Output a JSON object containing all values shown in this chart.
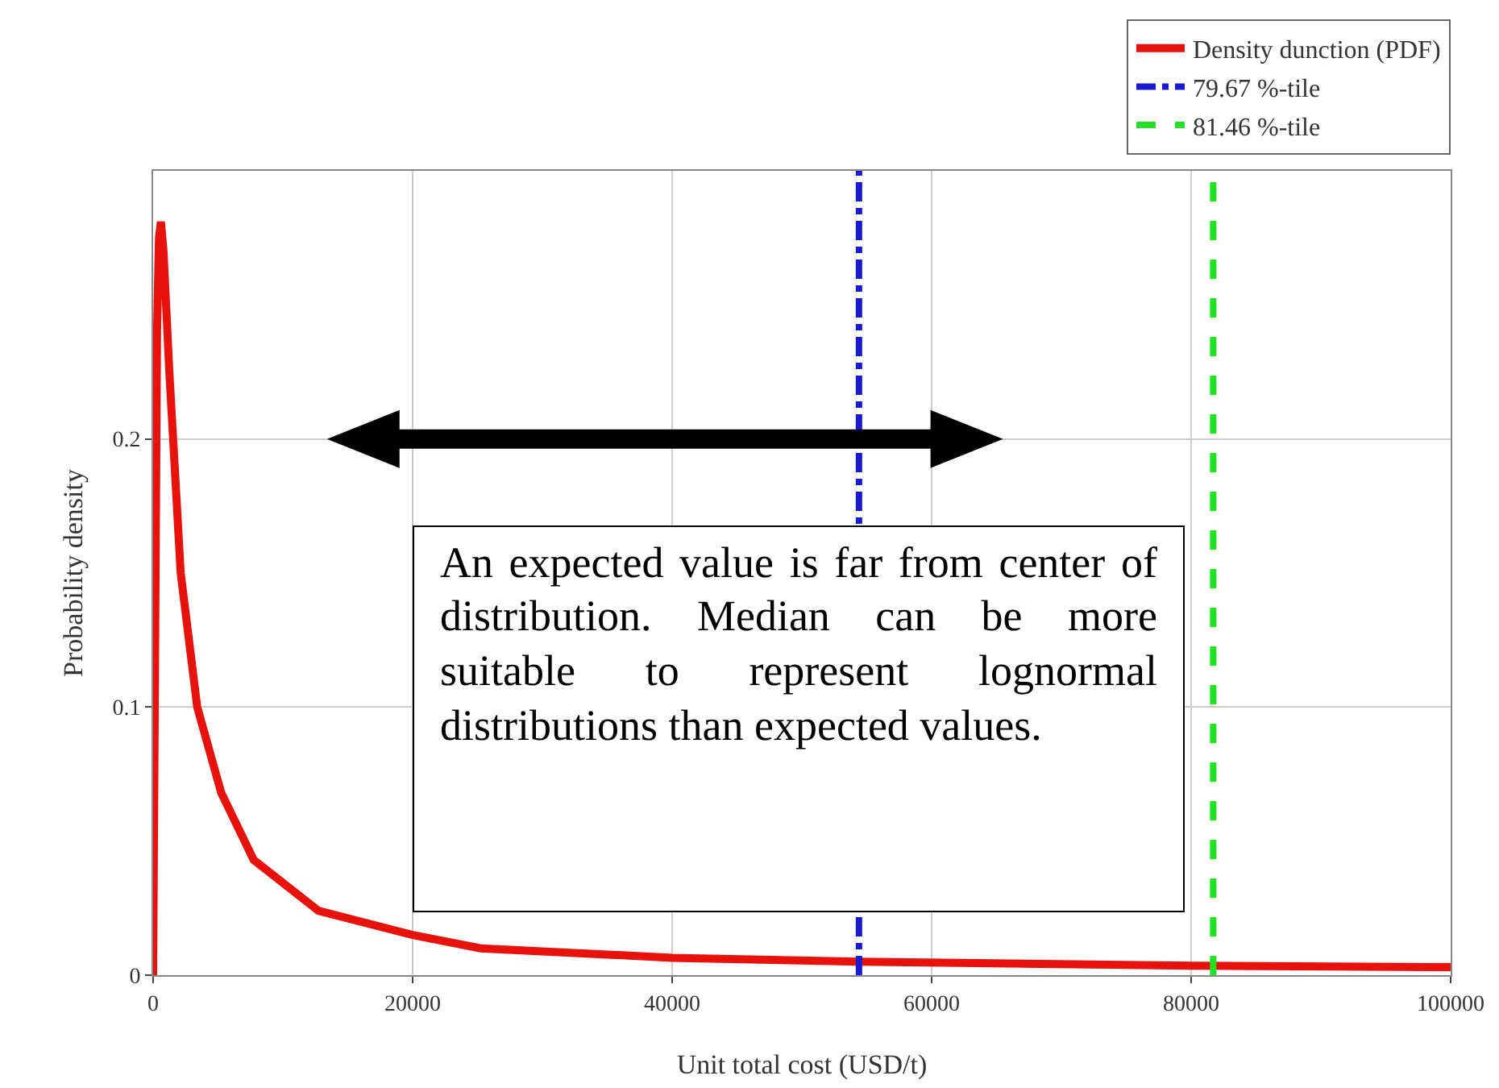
{
  "chart_data": {
    "type": "line",
    "xlabel": "Unit total cost (USD/t)",
    "ylabel": "Probability density",
    "x": [
      0,
      150,
      300,
      450,
      600,
      800,
      1250,
      2125,
      3400,
      5250,
      7750,
      12750,
      20000,
      25250,
      40000,
      54400,
      80000,
      100000
    ],
    "series": [
      {
        "name": "Density dunction (PDF)",
        "color": "#e8120c",
        "values": [
          0,
          0.12,
          0.24,
          0.275,
          0.281,
          0.27,
          0.225,
          0.15,
          0.1,
          0.068,
          0.043,
          0.024,
          0.015,
          0.01,
          0.0065,
          0.005,
          0.0035,
          0.003
        ]
      }
    ],
    "ref_lines": [
      {
        "axis": "x",
        "value": 54400,
        "label": "79.67 %-tile",
        "color": "#1a1ad0",
        "line_style": "dashdot"
      },
      {
        "axis": "x",
        "value": 81700,
        "label": "81.46 %-tile",
        "color": "#22e022",
        "line_style": "dashed"
      }
    ],
    "annotations": [
      "An expected value is far from center of distribution. Median can be more suitable to represent lognormal distributions than expected values."
    ],
    "xlim": [
      0,
      100000
    ],
    "xticks": [
      0,
      20000,
      40000,
      60000,
      80000,
      100000
    ],
    "ylim": [
      0,
      0.3
    ],
    "yticks": [
      0,
      0.1,
      0.2
    ],
    "grid": true,
    "legend": "top right",
    "marker": "none",
    "line_style": "solid"
  }
}
